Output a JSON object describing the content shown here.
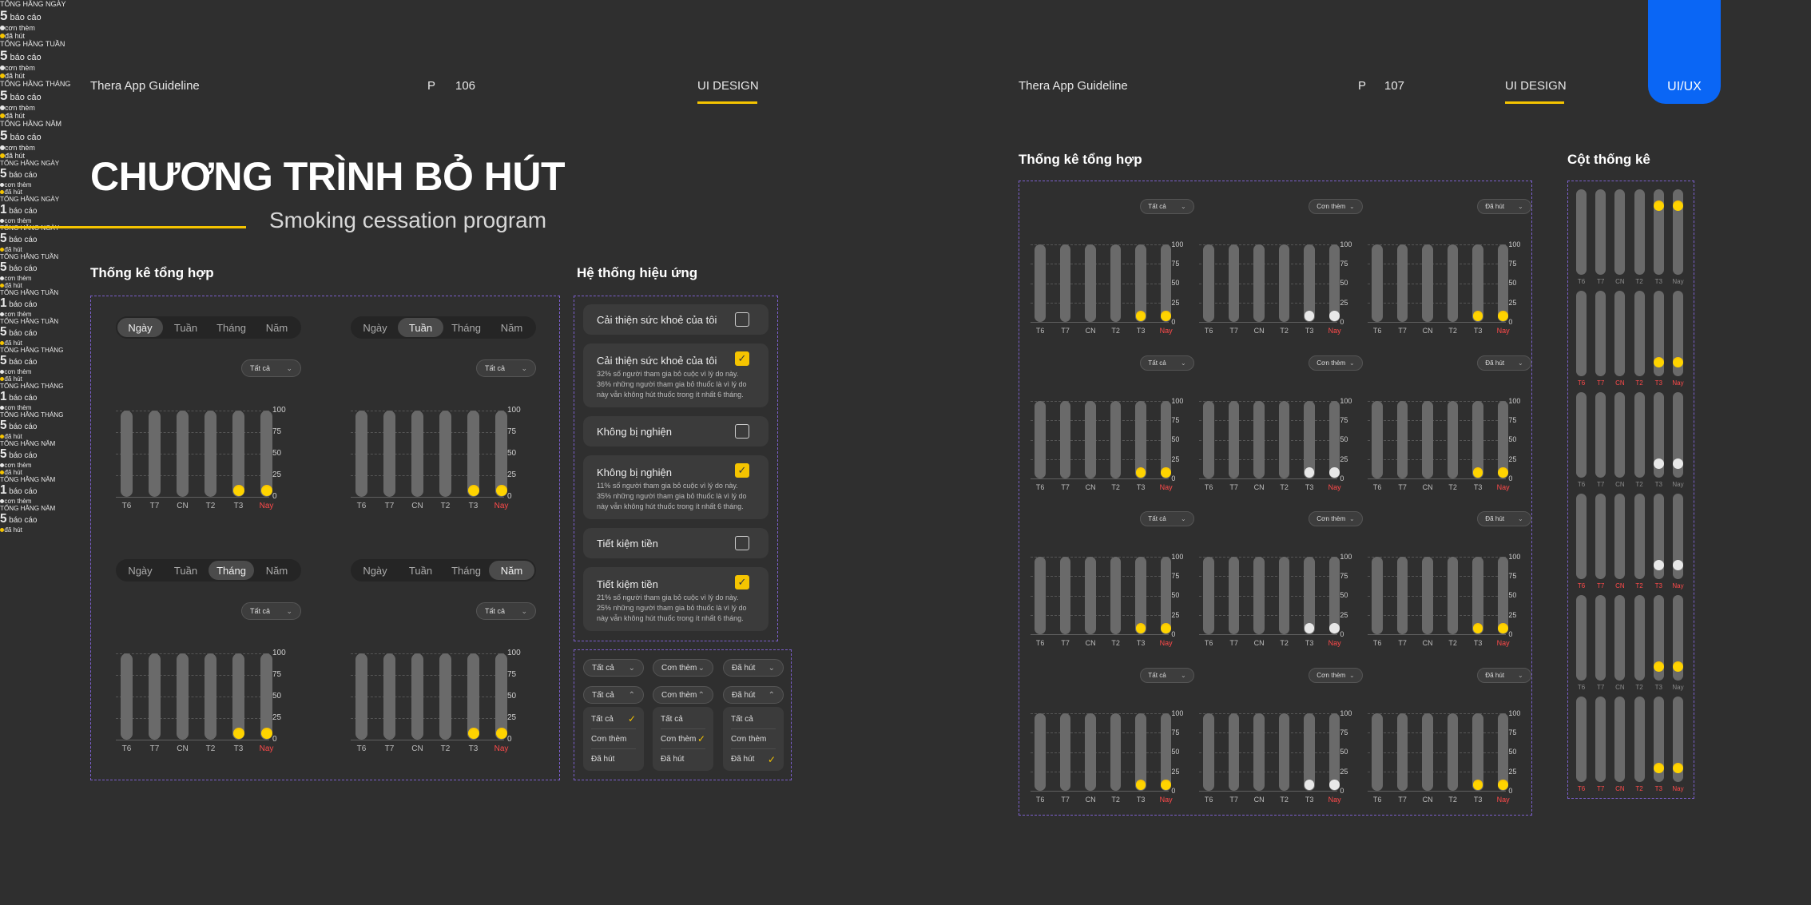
{
  "left_page": {
    "guide_title": "Thera App Guideline",
    "page_prefix": "P",
    "page_number": "106",
    "section": "UI DESIGN",
    "main_title": "CHƯƠNG TRÌNH BỎ HÚT",
    "subtitle": "Smoking cessation program",
    "stats_heading": "Thống kê tổng hợp",
    "effects_heading": "Hệ thống hiệu ứng"
  },
  "right_page": {
    "guide_title": "Thera App Guideline",
    "page_prefix": "P",
    "page_number": "107",
    "section": "UI DESIGN",
    "corner_tag": "UI/UX",
    "stats_heading": "Thống kê tổng hợp",
    "columns_heading": "Cột thống kê"
  },
  "period_tabs": [
    "Ngày",
    "Tuần",
    "Tháng",
    "Năm"
  ],
  "left_cards": [
    {
      "active_tab": 0,
      "label": "TỔNG HẰNG NGÀY",
      "count": "5",
      "unit": "báo cáo",
      "legend": [
        "cơn thèm",
        "đã hút"
      ],
      "filter": "Tất cả"
    },
    {
      "active_tab": 1,
      "label": "TỔNG HẰNG TUẦN",
      "count": "5",
      "unit": "báo cáo",
      "legend": [
        "cơn thèm",
        "đã hút"
      ],
      "filter": "Tất cả"
    },
    {
      "active_tab": 2,
      "label": "TỔNG HẰNG THÁNG",
      "count": "5",
      "unit": "báo cáo",
      "legend": [
        "cơn thèm",
        "đã hút"
      ],
      "filter": "Tất cả"
    },
    {
      "active_tab": 3,
      "label": "TỔNG HẰNG NĂM",
      "count": "5",
      "unit": "báo cáo",
      "legend": [
        "cơn thèm",
        "đã hút"
      ],
      "filter": "Tất cả"
    }
  ],
  "chart_data": {
    "type": "bar",
    "categories": [
      "T6",
      "T7",
      "CN",
      "T2",
      "T3",
      "Nay"
    ],
    "y_ticks": [
      "100",
      "75",
      "50",
      "25",
      "0"
    ],
    "ylim": [
      0,
      100
    ],
    "values_all": [
      0,
      0,
      0,
      0,
      3,
      3
    ],
    "highlight_color": "#f5c400",
    "today_color": "#ff4a4a"
  },
  "right_rows": [
    {
      "label": "TỔNG HẰNG NGÀY"
    },
    {
      "label": "TỔNG HẰNG TUẦN"
    },
    {
      "label": "TỔNG HẰNG THÁNG"
    },
    {
      "label": "TỔNG HẰNG NĂM"
    }
  ],
  "right_cols": [
    {
      "count": "5",
      "unit": "báo cáo",
      "legend": [
        "cơn thèm",
        "đã hút"
      ],
      "filter": "Tất cả",
      "knob": "yellow"
    },
    {
      "count": "1",
      "unit": "báo cáo",
      "legend": [
        "cơn thèm"
      ],
      "filter": "Cơn thèm",
      "knob": "white"
    },
    {
      "count": "5",
      "unit": "báo cáo",
      "legend": [
        "đã hút"
      ],
      "filter": "Đã hút",
      "knob": "yellow"
    }
  ],
  "effects": [
    {
      "title": "Cải thiện sức khoẻ của tôi",
      "checked": false,
      "desc": []
    },
    {
      "title": "Cải thiện sức khoẻ của tôi",
      "checked": true,
      "desc": [
        "32% số người tham gia bỏ cuộc vì lý do này.",
        "36% những người tham gia bỏ thuốc là vì lý do",
        "này vẫn không hút thuốc trong ít nhất 6 tháng."
      ]
    },
    {
      "title": "Không bị nghiện",
      "checked": false,
      "desc": []
    },
    {
      "title": "Không bị nghiện",
      "checked": true,
      "desc": [
        "11% số người tham gia bỏ cuộc vì lý do này.",
        "35% những người tham gia bỏ thuốc là vì lý do",
        "này vẫn không hút thuốc trong ít nhất 6 tháng."
      ]
    },
    {
      "title": "Tiết kiệm tiền",
      "checked": false,
      "desc": []
    },
    {
      "title": "Tiết kiệm tiền",
      "checked": true,
      "desc": [
        "21% số người tham gia bỏ cuộc vì lý do này.",
        "25% những người tham gia bỏ thuốc là vì lý do",
        "này vẫn không hút thuốc trong ít nhất 6 tháng."
      ]
    }
  ],
  "dropdowns": {
    "closed": [
      "Tất cả",
      "Cơn thèm",
      "Đã hút"
    ],
    "open": [
      "Tất cả",
      "Cơn thèm",
      "Đã hút"
    ],
    "options": [
      "Tất cả",
      "Cơn thèm",
      "Đã hút"
    ]
  },
  "columns": {
    "labels": [
      "T6",
      "T7",
      "CN",
      "T2",
      "T3",
      "Nay"
    ],
    "rows": [
      {
        "knob": "yellow",
        "knob_level": 0.75,
        "labels_red": false
      },
      {
        "knob": "yellow",
        "knob_level": 0.1,
        "labels_red": true
      },
      {
        "knob": "white",
        "knob_level": 0.1,
        "labels_red": false
      },
      {
        "knob": "white",
        "knob_level": 0.1,
        "labels_red": true
      },
      {
        "knob": "yellow",
        "knob_level": 0.1,
        "labels_red": false
      },
      {
        "knob": "yellow",
        "knob_level": 0.1,
        "labels_red": true
      }
    ]
  }
}
